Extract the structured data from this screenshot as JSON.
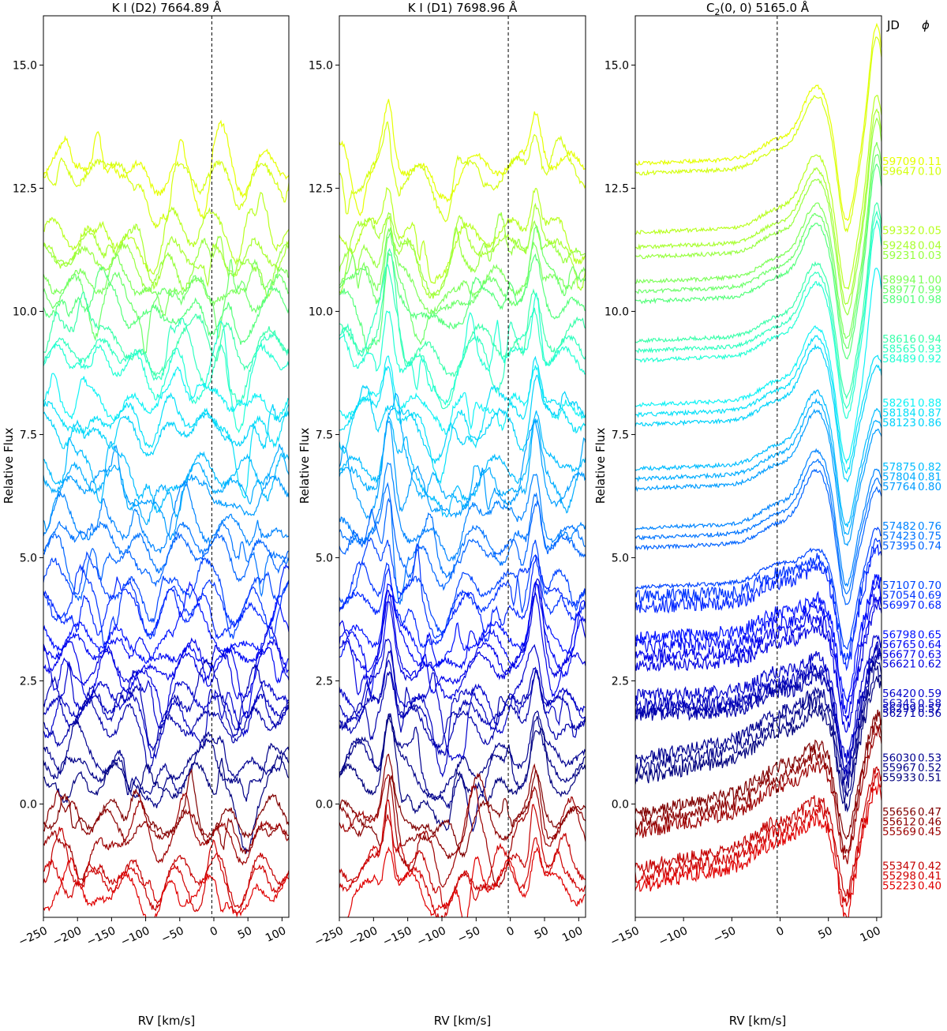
{
  "chart_data": [
    {
      "type": "line",
      "title": "K I (D2)  7664.89 Å",
      "xlabel": "RV [km/s]",
      "ylabel": "Relative Flux",
      "xlim": [
        -250,
        110
      ],
      "ylim": [
        -2.3,
        16.0
      ],
      "xticks": [
        "−250",
        "−200",
        "−150",
        "−100",
        "−50",
        "0",
        "50",
        "100"
      ],
      "xtick_values": [
        -250,
        -200,
        -150,
        -100,
        -50,
        0,
        50,
        100
      ],
      "yticks": [
        "0.0",
        "2.5",
        "5.0",
        "7.5",
        "10.0",
        "12.5",
        "15.0"
      ],
      "ytick_values": [
        0,
        2.5,
        5,
        7.5,
        10,
        12.5,
        15
      ],
      "vline_x": -3
    },
    {
      "type": "line",
      "title": "K I (D1)  7698.96 Å",
      "xlabel": "RV [km/s]",
      "ylabel": "Relative Flux",
      "xlim": [
        -250,
        110
      ],
      "ylim": [
        -2.3,
        16.0
      ],
      "xticks": [
        "−250",
        "−200",
        "−150",
        "−100",
        "−50",
        "0",
        "50",
        "100"
      ],
      "xtick_values": [
        -250,
        -200,
        -150,
        -100,
        -50,
        0,
        50,
        100
      ],
      "yticks": [
        "0.0",
        "2.5",
        "5.0",
        "7.5",
        "10.0",
        "12.5",
        "15.0"
      ],
      "ytick_values": [
        0,
        2.5,
        5,
        7.5,
        10,
        12.5,
        15
      ],
      "vline_x": -3
    },
    {
      "type": "line",
      "title": "C2(0, 0)  5165.0 Å",
      "title_main": "C",
      "title_sub": "2",
      "title_rest": "(0, 0)  5165.0 Å",
      "xlabel": "RV [km/s]",
      "ylabel": "Relative Flux",
      "xlim": [
        -150,
        105
      ],
      "ylim": [
        -2.3,
        16.0
      ],
      "xticks": [
        "−150",
        "−100",
        "−50",
        "0",
        "50",
        "100"
      ],
      "xtick_values": [
        -150,
        -100,
        -50,
        0,
        50,
        100
      ],
      "yticks": [
        "0.0",
        "2.5",
        "5.0",
        "7.5",
        "10.0",
        "12.5",
        "15.0"
      ],
      "ytick_values": [
        0,
        2.5,
        5,
        7.5,
        10,
        12.5,
        15
      ],
      "vline_x": -3
    }
  ],
  "legend": {
    "header_jd": "JD",
    "header_phase": "ϕ",
    "placement": "right of third panel",
    "entries": [
      {
        "jd": "59709",
        "phase": "0.11",
        "offset": 13.0,
        "color": "#e5ff00"
      },
      {
        "jd": "59647",
        "phase": "0.10",
        "offset": 12.8,
        "color": "#d4ff10"
      },
      {
        "jd": "59332",
        "phase": "0.05",
        "offset": 11.6,
        "color": "#b8ff20"
      },
      {
        "jd": "59248",
        "phase": "0.04",
        "offset": 11.3,
        "color": "#a8ff30"
      },
      {
        "jd": "59231",
        "phase": "0.03",
        "offset": 11.1,
        "color": "#98ff40"
      },
      {
        "jd": "58994",
        "phase": "1.00",
        "offset": 10.6,
        "color": "#7dff5a"
      },
      {
        "jd": "58977",
        "phase": "0.99",
        "offset": 10.4,
        "color": "#6cff6a"
      },
      {
        "jd": "58901",
        "phase": "0.98",
        "offset": 10.2,
        "color": "#56ff7c"
      },
      {
        "jd": "58616",
        "phase": "0.94",
        "offset": 9.4,
        "color": "#3cffab"
      },
      {
        "jd": "58565",
        "phase": "0.93",
        "offset": 9.2,
        "color": "#30ffc0"
      },
      {
        "jd": "58489",
        "phase": "0.92",
        "offset": 9.0,
        "color": "#22ffd4"
      },
      {
        "jd": "58261",
        "phase": "0.88",
        "offset": 8.1,
        "color": "#10f2f5"
      },
      {
        "jd": "58184",
        "phase": "0.87",
        "offset": 7.9,
        "color": "#06e0f8"
      },
      {
        "jd": "58123",
        "phase": "0.86",
        "offset": 7.7,
        "color": "#00d2fa"
      },
      {
        "jd": "57875",
        "phase": "0.82",
        "offset": 6.8,
        "color": "#00bcff"
      },
      {
        "jd": "57804",
        "phase": "0.81",
        "offset": 6.6,
        "color": "#00acff"
      },
      {
        "jd": "57764",
        "phase": "0.80",
        "offset": 6.4,
        "color": "#009cff"
      },
      {
        "jd": "57482",
        "phase": "0.76",
        "offset": 5.6,
        "color": "#0084ff"
      },
      {
        "jd": "57423",
        "phase": "0.75",
        "offset": 5.4,
        "color": "#0074ff"
      },
      {
        "jd": "57395",
        "phase": "0.74",
        "offset": 5.2,
        "color": "#0064ff"
      },
      {
        "jd": "57107",
        "phase": "0.70",
        "offset": 4.4,
        "color": "#0044ff"
      },
      {
        "jd": "57054",
        "phase": "0.69",
        "offset": 4.2,
        "color": "#0034ff"
      },
      {
        "jd": "56997",
        "phase": "0.68",
        "offset": 4.0,
        "color": "#0024ff"
      },
      {
        "jd": "56798",
        "phase": "0.65",
        "offset": 3.4,
        "color": "#0010ff"
      },
      {
        "jd": "56765",
        "phase": "0.64",
        "offset": 3.2,
        "color": "#0008f4"
      },
      {
        "jd": "56677",
        "phase": "0.63",
        "offset": 3.0,
        "color": "#0000ea"
      },
      {
        "jd": "56621",
        "phase": "0.62",
        "offset": 2.8,
        "color": "#0000e0"
      },
      {
        "jd": "56420",
        "phase": "0.59",
        "offset": 2.2,
        "color": "#0000cc"
      },
      {
        "jd": "56345",
        "phase": "0.58",
        "offset": 2.0,
        "color": "#0000c0"
      },
      {
        "jd": "56299",
        "phase": "0.57",
        "offset": 1.9,
        "color": "#0000b4"
      },
      {
        "jd": "56271",
        "phase": "0.56",
        "offset": 1.8,
        "color": "#0000aa"
      },
      {
        "jd": "56030",
        "phase": "0.53",
        "offset": 0.9,
        "color": "#000090"
      },
      {
        "jd": "55967",
        "phase": "0.52",
        "offset": 0.7,
        "color": "#000088"
      },
      {
        "jd": "55933",
        "phase": "0.51",
        "offset": 0.5,
        "color": "#00007e"
      },
      {
        "jd": "55656",
        "phase": "0.47",
        "offset": -0.2,
        "color": "#800000"
      },
      {
        "jd": "55612",
        "phase": "0.46",
        "offset": -0.4,
        "color": "#8c0000"
      },
      {
        "jd": "55569",
        "phase": "0.45",
        "offset": -0.6,
        "color": "#9c0000"
      },
      {
        "jd": "55347",
        "phase": "0.42",
        "offset": -1.3,
        "color": "#c40000"
      },
      {
        "jd": "55298",
        "phase": "0.41",
        "offset": -1.5,
        "color": "#d00000"
      },
      {
        "jd": "55223",
        "phase": "0.40",
        "offset": -1.7,
        "color": "#e00000"
      }
    ]
  }
}
